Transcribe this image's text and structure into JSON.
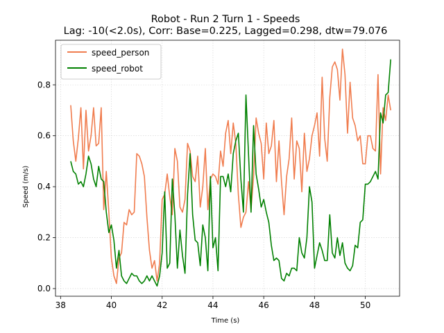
{
  "chart_data": {
    "type": "line",
    "title_line1": "Robot - Run 2 Turn 1 - Speeds",
    "title_line2": "Lag: -10(<2.0s), Corr: Base=0.225, Lagged=0.298, dtw=79.076",
    "xlabel": "Time (s)",
    "ylabel": "Speed (m/s)",
    "xlim": [
      37.8,
      51.35
    ],
    "ylim": [
      -0.03,
      0.975
    ],
    "xticks": [
      38,
      40,
      42,
      44,
      46,
      48,
      50
    ],
    "yticks": [
      0.0,
      0.2,
      0.4,
      0.6,
      0.8
    ],
    "grid": true,
    "legend_position": "top-left",
    "x_start": 38.4,
    "x_step": 0.1,
    "series": [
      {
        "name": "speed_person",
        "color": "#f07c4e",
        "values": [
          0.72,
          0.58,
          0.5,
          0.59,
          0.71,
          0.47,
          0.7,
          0.54,
          0.6,
          0.71,
          0.56,
          0.57,
          0.71,
          0.31,
          0.46,
          0.3,
          0.12,
          0.05,
          0.02,
          0.12,
          0.14,
          0.26,
          0.25,
          0.31,
          0.29,
          0.3,
          0.53,
          0.52,
          0.49,
          0.44,
          0.28,
          0.15,
          0.08,
          0.11,
          0.03,
          0.1,
          0.35,
          0.37,
          0.45,
          0.36,
          0.29,
          0.55,
          0.5,
          0.32,
          0.3,
          0.35,
          0.57,
          0.54,
          0.44,
          0.42,
          0.52,
          0.32,
          0.4,
          0.55,
          0.31,
          0.43,
          0.45,
          0.44,
          0.41,
          0.54,
          0.48,
          0.61,
          0.66,
          0.53,
          0.65,
          0.57,
          0.37,
          0.24,
          0.28,
          0.3,
          0.42,
          0.31,
          0.44,
          0.67,
          0.61,
          0.57,
          0.43,
          0.65,
          0.53,
          0.56,
          0.66,
          0.42,
          0.58,
          0.42,
          0.29,
          0.44,
          0.51,
          0.67,
          0.43,
          0.58,
          0.55,
          0.38,
          0.61,
          0.46,
          0.51,
          0.6,
          0.64,
          0.69,
          0.52,
          0.83,
          0.59,
          0.5,
          0.75,
          0.87,
          0.89,
          0.86,
          0.74,
          0.94,
          0.84,
          0.61,
          0.81,
          0.67,
          0.64,
          0.58,
          0.6,
          0.49,
          0.49,
          0.6,
          0.6,
          0.55,
          0.54,
          0.84,
          0.45,
          0.71,
          0.66,
          0.76,
          0.7
        ]
      },
      {
        "name": "speed_robot",
        "color": "#008000",
        "values": [
          0.5,
          0.46,
          0.45,
          0.41,
          0.42,
          0.4,
          0.45,
          0.52,
          0.49,
          0.43,
          0.4,
          0.48,
          0.43,
          0.42,
          0.3,
          0.22,
          0.25,
          0.19,
          0.08,
          0.15,
          0.05,
          0.03,
          0.02,
          0.04,
          0.06,
          0.05,
          0.05,
          0.03,
          0.02,
          0.03,
          0.05,
          0.03,
          0.05,
          0.03,
          0.01,
          0.05,
          0.14,
          0.38,
          0.08,
          0.1,
          0.43,
          0.29,
          0.08,
          0.23,
          0.13,
          0.06,
          0.37,
          0.53,
          0.29,
          0.19,
          0.18,
          0.09,
          0.25,
          0.2,
          0.07,
          0.44,
          0.16,
          0.2,
          0.07,
          0.44,
          0.44,
          0.4,
          0.45,
          0.38,
          0.53,
          0.58,
          0.61,
          0.43,
          0.3,
          0.76,
          0.53,
          0.3,
          0.64,
          0.45,
          0.39,
          0.32,
          0.35,
          0.3,
          0.26,
          0.17,
          0.11,
          0.12,
          0.11,
          0.04,
          0.03,
          0.06,
          0.05,
          0.08,
          0.08,
          0.07,
          0.2,
          0.14,
          0.12,
          0.2,
          0.4,
          0.34,
          0.08,
          0.13,
          0.18,
          0.15,
          0.11,
          0.11,
          0.29,
          0.14,
          0.12,
          0.2,
          0.13,
          0.18,
          0.1,
          0.08,
          0.07,
          0.09,
          0.17,
          0.16,
          0.26,
          0.27,
          0.41,
          0.41,
          0.42,
          0.44,
          0.46,
          0.43,
          0.69,
          0.65,
          0.76,
          0.77,
          0.9
        ]
      }
    ]
  }
}
